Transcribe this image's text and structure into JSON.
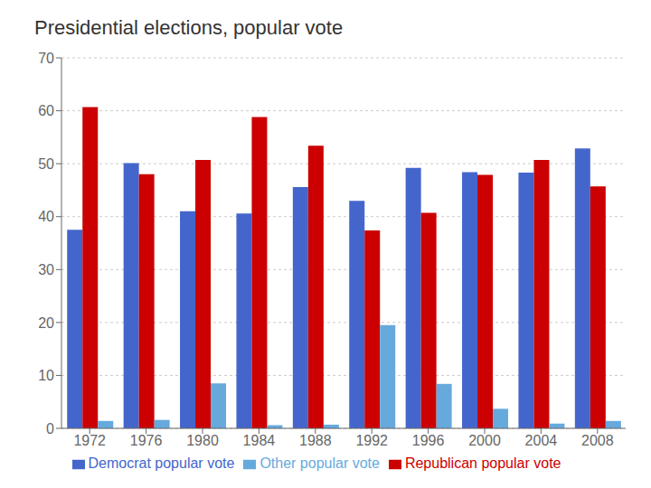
{
  "chart_data": {
    "type": "bar",
    "title": "Presidential elections, popular vote",
    "categories": [
      "1972",
      "1976",
      "1980",
      "1984",
      "1988",
      "1992",
      "1996",
      "2000",
      "2004",
      "2008"
    ],
    "series": [
      {
        "name": "Democrat popular vote",
        "color": "#4466cc",
        "values": [
          37.5,
          50.1,
          41.0,
          40.6,
          45.6,
          43.0,
          49.2,
          48.4,
          48.3,
          52.9
        ]
      },
      {
        "name": "Republican popular vote",
        "color": "#cc0000",
        "values": [
          60.7,
          48.0,
          50.7,
          58.8,
          53.4,
          37.4,
          40.7,
          47.9,
          50.7,
          45.7
        ]
      },
      {
        "name": "Other popular vote",
        "color": "#66aadd",
        "values": [
          1.4,
          1.6,
          8.5,
          0.6,
          0.7,
          19.5,
          8.4,
          3.7,
          0.9,
          1.4
        ]
      }
    ],
    "ylim": [
      0,
      70
    ],
    "yticks": [
      0,
      10,
      20,
      30,
      40,
      50,
      60,
      70
    ],
    "grid": true,
    "legend": "bottom"
  }
}
